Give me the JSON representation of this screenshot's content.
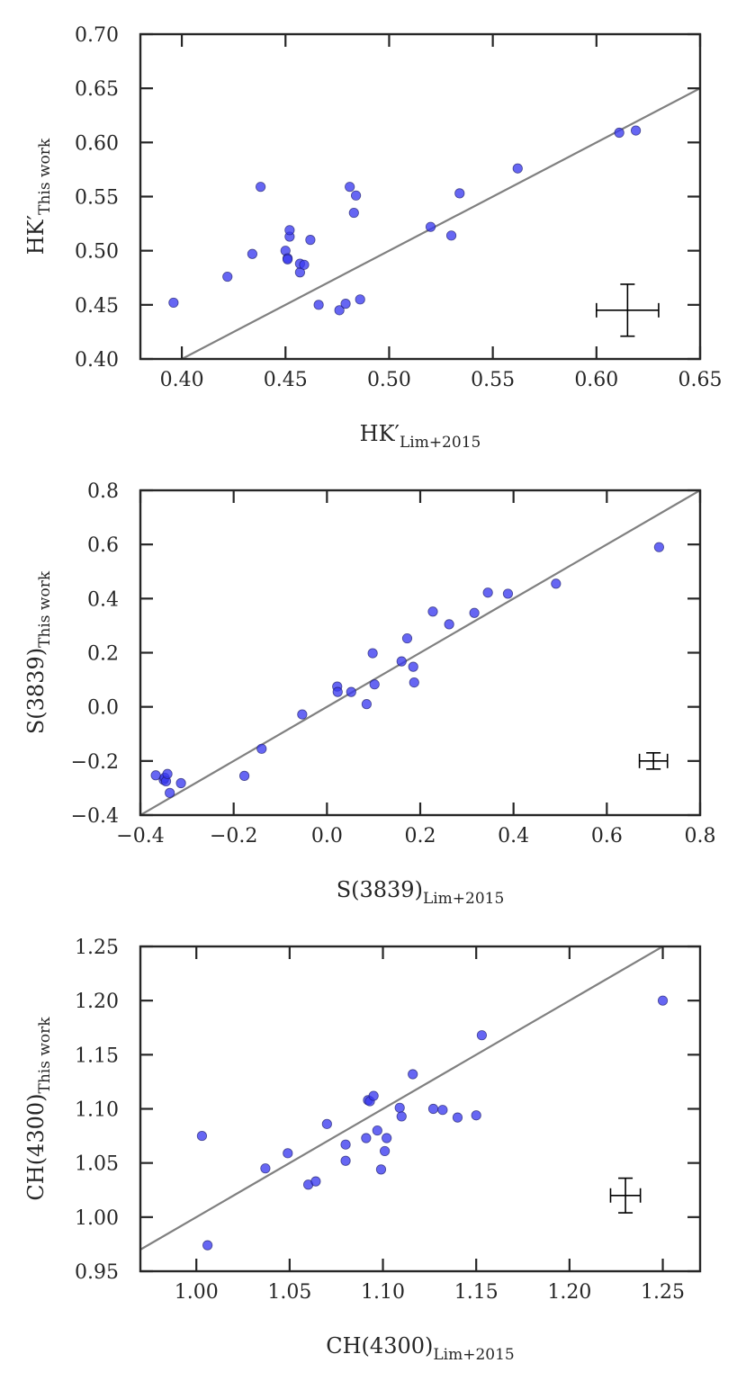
{
  "chart_data": [
    {
      "type": "scatter",
      "xlabel": {
        "main": "HK′",
        "sub": "Lim+2015"
      },
      "ylabel": {
        "main": "HK′",
        "sub": "This work"
      },
      "xlim": [
        0.38,
        0.65
      ],
      "ylim": [
        0.4,
        0.7
      ],
      "xticks": [
        0.4,
        0.45,
        0.5,
        0.55,
        0.6,
        0.65
      ],
      "yticks": [
        0.4,
        0.45,
        0.5,
        0.55,
        0.6,
        0.65,
        0.7
      ],
      "xtick_labels": [
        "0.40",
        "0.45",
        "0.50",
        "0.55",
        "0.60",
        "0.65"
      ],
      "ytick_labels": [
        "0.40",
        "0.45",
        "0.50",
        "0.55",
        "0.60",
        "0.65",
        "0.70"
      ],
      "one_to_one_line": true,
      "marker_color": "#3b3bf0",
      "line_color": "#808080",
      "points": [
        [
          0.396,
          0.452
        ],
        [
          0.422,
          0.476
        ],
        [
          0.434,
          0.497
        ],
        [
          0.438,
          0.559
        ],
        [
          0.45,
          0.5
        ],
        [
          0.451,
          0.493
        ],
        [
          0.451,
          0.492
        ],
        [
          0.452,
          0.513
        ],
        [
          0.452,
          0.519
        ],
        [
          0.457,
          0.48
        ],
        [
          0.457,
          0.488
        ],
        [
          0.459,
          0.487
        ],
        [
          0.462,
          0.51
        ],
        [
          0.466,
          0.45
        ],
        [
          0.476,
          0.445
        ],
        [
          0.479,
          0.451
        ],
        [
          0.481,
          0.559
        ],
        [
          0.483,
          0.535
        ],
        [
          0.484,
          0.551
        ],
        [
          0.486,
          0.455
        ],
        [
          0.52,
          0.522
        ],
        [
          0.53,
          0.514
        ],
        [
          0.534,
          0.553
        ],
        [
          0.562,
          0.576
        ],
        [
          0.611,
          0.609
        ],
        [
          0.619,
          0.611
        ]
      ],
      "error_bar": {
        "x": 0.615,
        "y": 0.445,
        "xerr": 0.015,
        "yerr": 0.024
      }
    },
    {
      "type": "scatter",
      "xlabel": {
        "main": "S(3839)",
        "sub": "Lim+2015"
      },
      "ylabel": {
        "main": "S(3839)",
        "sub": "This work"
      },
      "xlim": [
        -0.4,
        0.8
      ],
      "ylim": [
        -0.4,
        0.8
      ],
      "xticks": [
        -0.4,
        -0.2,
        0.0,
        0.2,
        0.4,
        0.6,
        0.8
      ],
      "yticks": [
        -0.4,
        -0.2,
        0.0,
        0.2,
        0.4,
        0.6,
        0.8
      ],
      "xtick_labels": [
        "−0.4",
        "−0.2",
        "0.0",
        "0.2",
        "0.4",
        "0.6",
        "0.8"
      ],
      "ytick_labels": [
        "−0.4",
        "−0.2",
        "0.0",
        "0.2",
        "0.4",
        "0.6",
        "0.8"
      ],
      "one_to_one_line": true,
      "marker_color": "#3b3bf0",
      "line_color": "#808080",
      "points": [
        [
          -0.367,
          -0.253
        ],
        [
          -0.35,
          -0.27
        ],
        [
          -0.348,
          -0.262
        ],
        [
          -0.345,
          -0.275
        ],
        [
          -0.342,
          -0.248
        ],
        [
          -0.337,
          -0.318
        ],
        [
          -0.313,
          -0.282
        ],
        [
          -0.177,
          -0.255
        ],
        [
          -0.14,
          -0.155
        ],
        [
          -0.053,
          -0.028
        ],
        [
          0.022,
          0.075
        ],
        [
          0.023,
          0.055
        ],
        [
          0.052,
          0.055
        ],
        [
          0.085,
          0.01
        ],
        [
          0.098,
          0.198
        ],
        [
          0.102,
          0.083
        ],
        [
          0.16,
          0.168
        ],
        [
          0.172,
          0.253
        ],
        [
          0.185,
          0.148
        ],
        [
          0.187,
          0.09
        ],
        [
          0.227,
          0.352
        ],
        [
          0.262,
          0.305
        ],
        [
          0.316,
          0.347
        ],
        [
          0.345,
          0.422
        ],
        [
          0.388,
          0.418
        ],
        [
          0.491,
          0.455
        ],
        [
          0.712,
          0.59
        ]
      ],
      "error_bar": {
        "x": 0.7,
        "y": -0.2,
        "xerr": 0.03,
        "yerr": 0.03
      }
    },
    {
      "type": "scatter",
      "xlabel": {
        "main": "CH(4300)",
        "sub": "Lim+2015"
      },
      "ylabel": {
        "main": "CH(4300)",
        "sub": "This work"
      },
      "xlim": [
        0.97,
        1.27
      ],
      "ylim": [
        0.95,
        1.25
      ],
      "xticks": [
        1.0,
        1.05,
        1.1,
        1.15,
        1.2,
        1.25
      ],
      "yticks": [
        0.95,
        1.0,
        1.05,
        1.1,
        1.15,
        1.2,
        1.25
      ],
      "xtick_labels": [
        "1.00",
        "1.05",
        "1.10",
        "1.15",
        "1.20",
        "1.25"
      ],
      "ytick_labels": [
        "0.95",
        "1.00",
        "1.05",
        "1.10",
        "1.15",
        "1.20",
        "1.25"
      ],
      "one_to_one_line": true,
      "marker_color": "#3b3bf0",
      "line_color": "#808080",
      "points": [
        [
          1.003,
          1.075
        ],
        [
          1.006,
          0.974
        ],
        [
          1.037,
          1.045
        ],
        [
          1.049,
          1.059
        ],
        [
          1.06,
          1.03
        ],
        [
          1.064,
          1.033
        ],
        [
          1.07,
          1.086
        ],
        [
          1.08,
          1.067
        ],
        [
          1.08,
          1.052
        ],
        [
          1.091,
          1.073
        ],
        [
          1.092,
          1.108
        ],
        [
          1.093,
          1.107
        ],
        [
          1.095,
          1.112
        ],
        [
          1.097,
          1.08
        ],
        [
          1.099,
          1.044
        ],
        [
          1.101,
          1.061
        ],
        [
          1.102,
          1.073
        ],
        [
          1.109,
          1.101
        ],
        [
          1.11,
          1.093
        ],
        [
          1.116,
          1.132
        ],
        [
          1.127,
          1.1
        ],
        [
          1.132,
          1.099
        ],
        [
          1.14,
          1.092
        ],
        [
          1.15,
          1.094
        ],
        [
          1.153,
          1.168
        ],
        [
          1.25,
          1.2
        ]
      ],
      "error_bar": {
        "x": 1.23,
        "y": 1.02,
        "xerr": 0.008,
        "yerr": 0.016
      }
    }
  ]
}
